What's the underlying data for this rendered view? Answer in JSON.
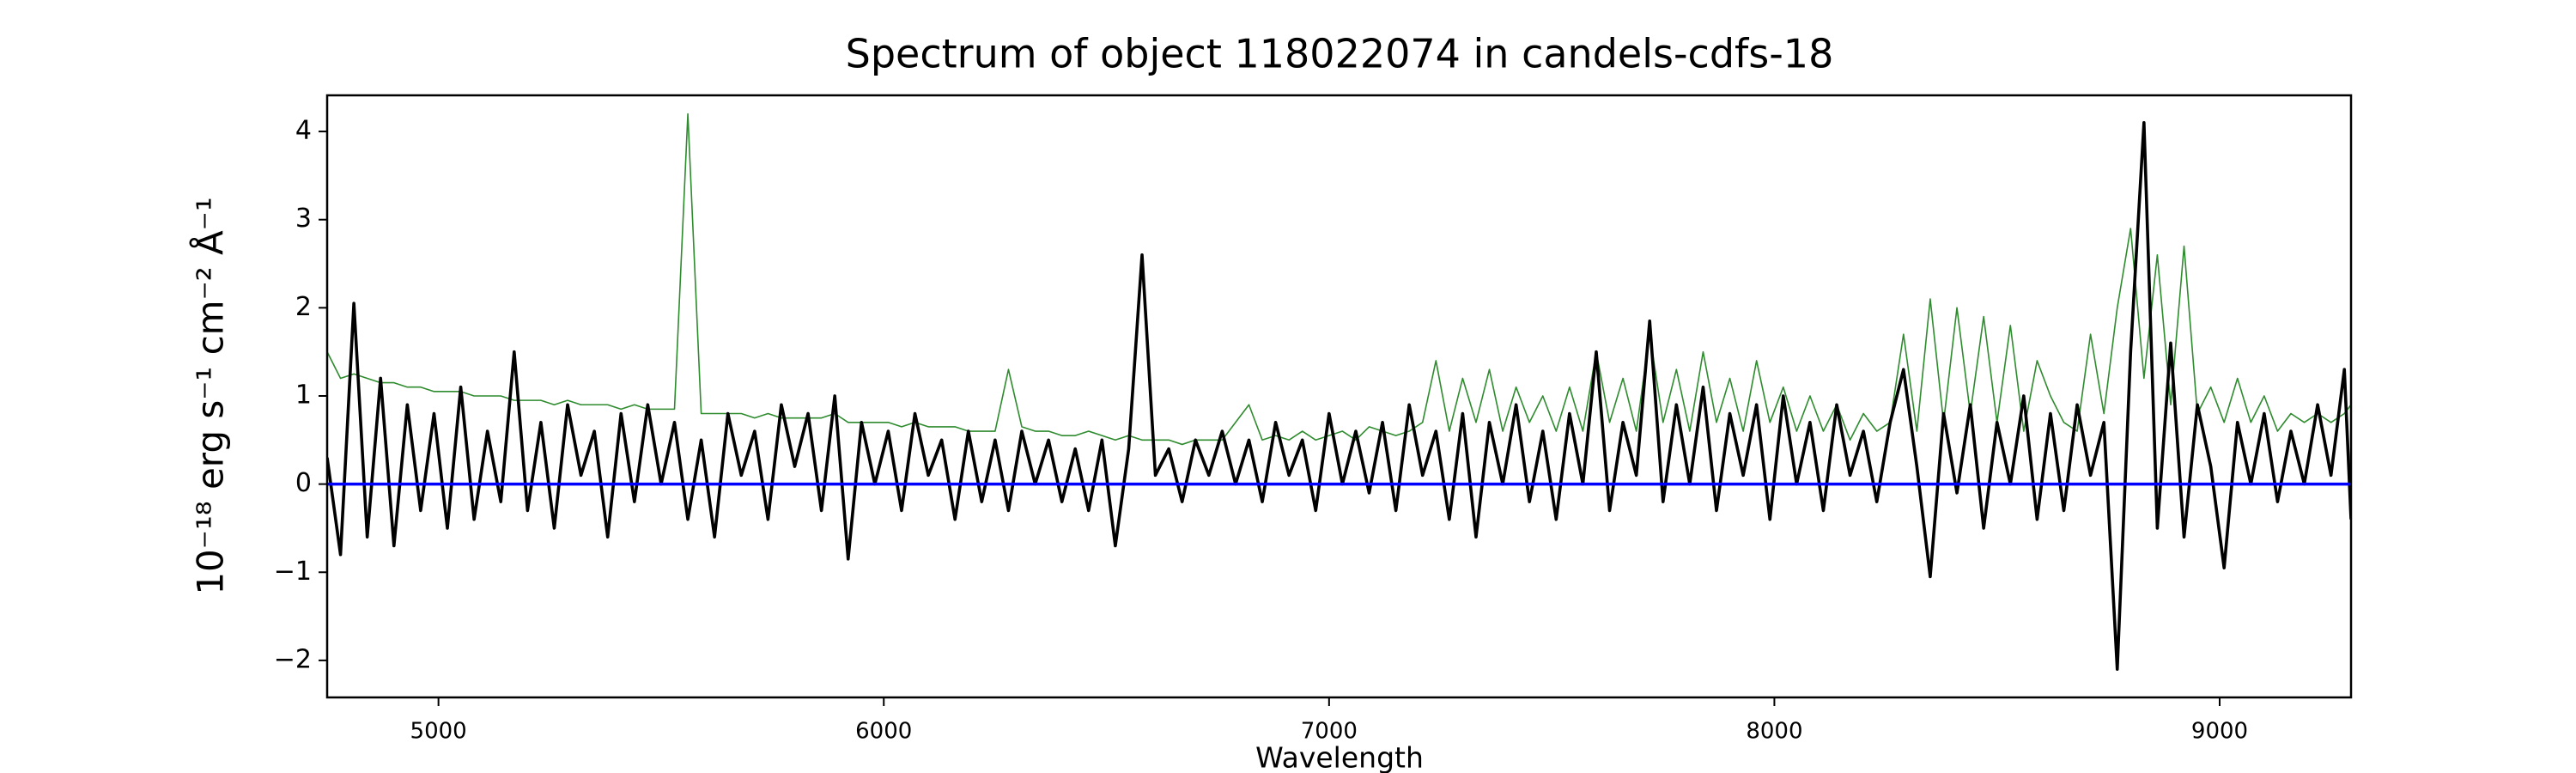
{
  "chart_data": {
    "type": "line",
    "title": "Spectrum of object 118022074 in candels-cdfs-18",
    "xlabel": "Wavelength",
    "ylabel": "10⁻¹⁸ erg s⁻¹ cm⁻² Å⁻¹",
    "xlim": [
      4750,
      9295
    ],
    "ylim": [
      -2.42,
      4.41
    ],
    "xticks": [
      5000,
      6000,
      7000,
      8000,
      9000
    ],
    "yticks": [
      {
        "value": -2,
        "label": "−2"
      },
      {
        "value": -1,
        "label": "−1"
      },
      0,
      1,
      2,
      3,
      4
    ],
    "grid": false,
    "x": [
      4750,
      4780,
      4810,
      4840,
      4870,
      4900,
      4930,
      4960,
      4990,
      5020,
      5050,
      5080,
      5110,
      5140,
      5170,
      5200,
      5230,
      5260,
      5290,
      5320,
      5350,
      5380,
      5410,
      5440,
      5470,
      5500,
      5530,
      5560,
      5590,
      5620,
      5650,
      5680,
      5710,
      5740,
      5770,
      5800,
      5830,
      5860,
      5890,
      5920,
      5950,
      5980,
      6010,
      6040,
      6070,
      6100,
      6130,
      6160,
      6190,
      6220,
      6250,
      6280,
      6310,
      6340,
      6370,
      6400,
      6430,
      6460,
      6490,
      6520,
      6550,
      6580,
      6610,
      6640,
      6670,
      6700,
      6730,
      6760,
      6790,
      6820,
      6850,
      6880,
      6910,
      6940,
      6970,
      7000,
      7030,
      7060,
      7090,
      7120,
      7150,
      7180,
      7210,
      7240,
      7270,
      7300,
      7330,
      7360,
      7390,
      7420,
      7450,
      7480,
      7510,
      7540,
      7570,
      7600,
      7630,
      7660,
      7690,
      7720,
      7750,
      7780,
      7810,
      7840,
      7870,
      7900,
      7930,
      7960,
      7990,
      8020,
      8050,
      8080,
      8110,
      8140,
      8170,
      8200,
      8230,
      8260,
      8290,
      8320,
      8350,
      8380,
      8410,
      8440,
      8470,
      8500,
      8530,
      8560,
      8590,
      8620,
      8650,
      8680,
      8710,
      8740,
      8770,
      8800,
      8830,
      8860,
      8890,
      8920,
      8950,
      8980,
      9010,
      9040,
      9070,
      9100,
      9130,
      9160,
      9190,
      9220,
      9250,
      9280,
      9295
    ],
    "series": [
      {
        "color": "#2e8b2e",
        "width": 1.6,
        "values": [
          1.5,
          1.2,
          1.25,
          1.2,
          1.15,
          1.15,
          1.1,
          1.1,
          1.05,
          1.05,
          1.05,
          1.0,
          1.0,
          1.0,
          0.95,
          0.95,
          0.95,
          0.9,
          0.95,
          0.9,
          0.9,
          0.9,
          0.85,
          0.9,
          0.85,
          0.85,
          0.85,
          4.2,
          0.8,
          0.8,
          0.8,
          0.8,
          0.75,
          0.8,
          0.75,
          0.75,
          0.75,
          0.75,
          0.8,
          0.7,
          0.7,
          0.7,
          0.7,
          0.65,
          0.7,
          0.65,
          0.65,
          0.65,
          0.6,
          0.6,
          0.6,
          1.3,
          0.65,
          0.6,
          0.6,
          0.55,
          0.55,
          0.6,
          0.55,
          0.5,
          0.55,
          0.5,
          0.5,
          0.5,
          0.45,
          0.5,
          0.5,
          0.5,
          0.7,
          0.9,
          0.5,
          0.55,
          0.5,
          0.6,
          0.5,
          0.55,
          0.6,
          0.5,
          0.65,
          0.6,
          0.55,
          0.6,
          0.7,
          1.4,
          0.6,
          1.2,
          0.7,
          1.3,
          0.6,
          1.1,
          0.7,
          1.0,
          0.6,
          1.1,
          0.6,
          1.5,
          0.7,
          1.2,
          0.6,
          1.7,
          0.7,
          1.3,
          0.6,
          1.5,
          0.7,
          1.2,
          0.6,
          1.4,
          0.7,
          1.1,
          0.6,
          1.0,
          0.6,
          0.9,
          0.5,
          0.8,
          0.6,
          0.7,
          1.7,
          0.6,
          2.1,
          0.7,
          2.0,
          0.8,
          1.9,
          0.7,
          1.8,
          0.6,
          1.4,
          1.0,
          0.7,
          0.6,
          1.7,
          0.8,
          2.0,
          2.9,
          1.2,
          2.6,
          0.9,
          2.7,
          0.8,
          1.1,
          0.7,
          1.2,
          0.7,
          1.0,
          0.6,
          0.8,
          0.7,
          0.8,
          0.7,
          0.8,
          0.9
        ]
      },
      {
        "color": "#000000",
        "width": 3.6,
        "values": [
          0.3,
          -0.8,
          2.05,
          -0.6,
          1.2,
          -0.7,
          0.9,
          -0.3,
          0.8,
          -0.5,
          1.1,
          -0.4,
          0.6,
          -0.2,
          1.5,
          -0.3,
          0.7,
          -0.5,
          0.9,
          0.1,
          0.6,
          -0.6,
          0.8,
          -0.2,
          0.9,
          0.0,
          0.7,
          -0.4,
          0.5,
          -0.6,
          0.8,
          0.1,
          0.6,
          -0.4,
          0.9,
          0.2,
          0.8,
          -0.3,
          1.0,
          -0.85,
          0.7,
          0.0,
          0.6,
          -0.3,
          0.8,
          0.1,
          0.5,
          -0.4,
          0.6,
          -0.2,
          0.5,
          -0.3,
          0.6,
          0.0,
          0.5,
          -0.2,
          0.4,
          -0.3,
          0.5,
          -0.7,
          0.4,
          2.6,
          0.1,
          0.4,
          -0.2,
          0.5,
          0.1,
          0.6,
          0.0,
          0.5,
          -0.2,
          0.7,
          0.1,
          0.5,
          -0.3,
          0.8,
          0.0,
          0.6,
          -0.1,
          0.7,
          -0.3,
          0.9,
          0.1,
          0.6,
          -0.4,
          0.8,
          -0.6,
          0.7,
          0.0,
          0.9,
          -0.2,
          0.6,
          -0.4,
          0.8,
          0.0,
          1.5,
          -0.3,
          0.7,
          0.1,
          1.85,
          -0.2,
          0.9,
          0.0,
          1.1,
          -0.3,
          0.8,
          0.1,
          0.9,
          -0.4,
          1.0,
          0.0,
          0.7,
          -0.3,
          0.9,
          0.1,
          0.6,
          -0.2,
          0.7,
          1.3,
          0.2,
          -1.05,
          0.8,
          -0.1,
          0.9,
          -0.5,
          0.7,
          0.0,
          1.0,
          -0.4,
          0.8,
          -0.3,
          0.9,
          0.1,
          0.7,
          -2.1,
          1.5,
          4.1,
          -0.5,
          1.6,
          -0.6,
          0.9,
          0.2,
          -0.95,
          0.7,
          0.0,
          0.8,
          -0.2,
          0.6,
          0.0,
          0.9,
          0.1,
          1.3,
          -0.4
        ]
      },
      {
        "color": "#0000ff",
        "width": 3.6,
        "x": [
          4750,
          9295
        ],
        "values": [
          0,
          0
        ]
      }
    ]
  }
}
